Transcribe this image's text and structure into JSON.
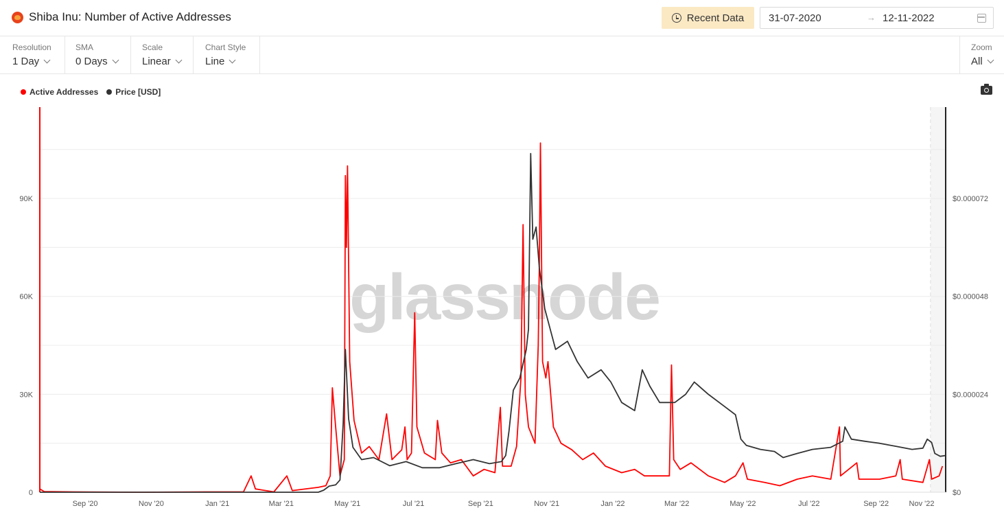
{
  "header": {
    "title": "Shiba Inu: Number of Active Addresses",
    "recent_label": "Recent Data",
    "date_start": "31-07-2020",
    "date_arrow": "→",
    "date_end": "12-11-2022"
  },
  "controls": [
    {
      "label": "Resolution",
      "value": "1 Day"
    },
    {
      "label": "SMA",
      "value": "0 Days"
    },
    {
      "label": "Scale",
      "value": "Linear"
    },
    {
      "label": "Chart Style",
      "value": "Line"
    }
  ],
  "zoom": {
    "label": "Zoom",
    "value": "All"
  },
  "watermark": "glassnode",
  "colors": {
    "active": "#ff0000",
    "price": "#333333",
    "accent": "#fbe9c4"
  },
  "chart_data": {
    "type": "line",
    "legend_position": "top-left",
    "grid": true,
    "x_ticks": [
      "Sep '20",
      "Nov '20",
      "Jan '21",
      "Mar '21",
      "May '21",
      "Jul '21",
      "Sep '21",
      "Nov '21",
      "Jan '22",
      "Mar '22",
      "May '22",
      "Jul '22",
      "Sep '22",
      "Nov '22"
    ],
    "x_range": [
      "2020-08-01",
      "2022-11-15"
    ],
    "y_left": {
      "ticks": [
        "0",
        "30K",
        "60K",
        "90K"
      ],
      "tick_values": [
        0,
        30000,
        60000,
        90000
      ],
      "range": [
        0,
        118000
      ]
    },
    "y_right": {
      "ticks": [
        "$0",
        "$0.000024",
        "$0.000048",
        "$0.000072"
      ],
      "tick_values": [
        0,
        2.4e-05,
        4.8e-05,
        7.2e-05
      ],
      "range": [
        0,
        9.44e-05
      ]
    },
    "series": [
      {
        "name": "Active Addresses",
        "axis": "left",
        "color": "#ff0000",
        "points": [
          [
            "2020-08-01",
            1000
          ],
          [
            "2020-08-05",
            200
          ],
          [
            "2020-09-01",
            100
          ],
          [
            "2020-11-01",
            0
          ],
          [
            "2021-01-01",
            100
          ],
          [
            "2021-02-05",
            100
          ],
          [
            "2021-02-12",
            5000
          ],
          [
            "2021-02-16",
            1000
          ],
          [
            "2021-03-05",
            100
          ],
          [
            "2021-03-17",
            5000
          ],
          [
            "2021-03-22",
            500
          ],
          [
            "2021-04-15",
            1500
          ],
          [
            "2021-04-22",
            2000
          ],
          [
            "2021-04-26",
            5000
          ],
          [
            "2021-04-28",
            32000
          ],
          [
            "2021-05-01",
            20000
          ],
          [
            "2021-05-05",
            5000
          ],
          [
            "2021-05-09",
            10000
          ],
          [
            "2021-05-10",
            97000
          ],
          [
            "2021-05-11",
            75000
          ],
          [
            "2021-05-12",
            100000
          ],
          [
            "2021-05-14",
            40000
          ],
          [
            "2021-05-18",
            22000
          ],
          [
            "2021-05-25",
            12000
          ],
          [
            "2021-06-01",
            14000
          ],
          [
            "2021-06-10",
            10000
          ],
          [
            "2021-06-17",
            24000
          ],
          [
            "2021-06-22",
            10000
          ],
          [
            "2021-07-01",
            13000
          ],
          [
            "2021-07-04",
            20000
          ],
          [
            "2021-07-06",
            10000
          ],
          [
            "2021-07-10",
            12000
          ],
          [
            "2021-07-13",
            55000
          ],
          [
            "2021-07-15",
            20000
          ],
          [
            "2021-07-22",
            12000
          ],
          [
            "2021-08-01",
            10000
          ],
          [
            "2021-08-03",
            22000
          ],
          [
            "2021-08-07",
            12000
          ],
          [
            "2021-08-15",
            9000
          ],
          [
            "2021-08-25",
            10000
          ],
          [
            "2021-09-05",
            5000
          ],
          [
            "2021-09-15",
            7000
          ],
          [
            "2021-09-25",
            6000
          ],
          [
            "2021-09-30",
            26000
          ],
          [
            "2021-10-02",
            8000
          ],
          [
            "2021-10-10",
            8000
          ],
          [
            "2021-10-15",
            14000
          ],
          [
            "2021-10-19",
            35000
          ],
          [
            "2021-10-21",
            82000
          ],
          [
            "2021-10-23",
            30000
          ],
          [
            "2021-10-26",
            20000
          ],
          [
            "2021-11-01",
            15000
          ],
          [
            "2021-11-04",
            45000
          ],
          [
            "2021-11-05",
            70000
          ],
          [
            "2021-11-06",
            107000
          ],
          [
            "2021-11-08",
            40000
          ],
          [
            "2021-11-11",
            35000
          ],
          [
            "2021-11-13",
            40000
          ],
          [
            "2021-11-18",
            20000
          ],
          [
            "2021-11-25",
            15000
          ],
          [
            "2021-12-05",
            13000
          ],
          [
            "2021-12-15",
            10000
          ],
          [
            "2021-12-25",
            12000
          ],
          [
            "2022-01-05",
            8000
          ],
          [
            "2022-01-20",
            6000
          ],
          [
            "2022-02-01",
            7000
          ],
          [
            "2022-02-10",
            5000
          ],
          [
            "2022-02-25",
            5000
          ],
          [
            "2022-03-05",
            5000
          ],
          [
            "2022-03-07",
            39000
          ],
          [
            "2022-03-09",
            10000
          ],
          [
            "2022-03-15",
            7000
          ],
          [
            "2022-03-25",
            9000
          ],
          [
            "2022-04-10",
            5000
          ],
          [
            "2022-04-25",
            3000
          ],
          [
            "2022-05-05",
            5000
          ],
          [
            "2022-05-12",
            9000
          ],
          [
            "2022-05-16",
            4000
          ],
          [
            "2022-06-01",
            3000
          ],
          [
            "2022-06-15",
            2000
          ],
          [
            "2022-07-01",
            4000
          ],
          [
            "2022-07-15",
            5000
          ],
          [
            "2022-08-01",
            4000
          ],
          [
            "2022-08-09",
            20000
          ],
          [
            "2022-08-10",
            5000
          ],
          [
            "2022-08-25",
            9000
          ],
          [
            "2022-08-27",
            4000
          ],
          [
            "2022-09-15",
            4000
          ],
          [
            "2022-09-30",
            5000
          ],
          [
            "2022-10-04",
            10000
          ],
          [
            "2022-10-06",
            4000
          ],
          [
            "2022-10-25",
            3000
          ],
          [
            "2022-10-31",
            10000
          ],
          [
            "2022-11-02",
            4000
          ],
          [
            "2022-11-09",
            5000
          ],
          [
            "2022-11-12",
            8000
          ]
        ]
      },
      {
        "name": "Price [USD]",
        "axis": "right",
        "color": "#333333",
        "points": [
          [
            "2020-08-01",
            0
          ],
          [
            "2021-04-15",
            0
          ],
          [
            "2021-04-20",
            5e-07
          ],
          [
            "2021-04-25",
            1.5e-06
          ],
          [
            "2021-05-01",
            1.8e-06
          ],
          [
            "2021-05-05",
            3e-06
          ],
          [
            "2021-05-08",
            1.7e-05
          ],
          [
            "2021-05-10",
            3.5e-05
          ],
          [
            "2021-05-13",
            1.8e-05
          ],
          [
            "2021-05-17",
            1.1e-05
          ],
          [
            "2021-05-25",
            8e-06
          ],
          [
            "2021-06-05",
            8.5e-06
          ],
          [
            "2021-06-20",
            6.5e-06
          ],
          [
            "2021-07-05",
            7.5e-06
          ],
          [
            "2021-07-20",
            6e-06
          ],
          [
            "2021-08-05",
            6e-06
          ],
          [
            "2021-08-20",
            7e-06
          ],
          [
            "2021-09-05",
            8e-06
          ],
          [
            "2021-09-20",
            7e-06
          ],
          [
            "2021-10-01",
            7.5e-06
          ],
          [
            "2021-10-05",
            9e-06
          ],
          [
            "2021-10-08",
            1.5e-05
          ],
          [
            "2021-10-12",
            2.5e-05
          ],
          [
            "2021-10-18",
            2.8e-05
          ],
          [
            "2021-10-24",
            3.5e-05
          ],
          [
            "2021-10-26",
            4e-05
          ],
          [
            "2021-10-28",
            8.3e-05
          ],
          [
            "2021-10-30",
            6.2e-05
          ],
          [
            "2021-11-02",
            6.5e-05
          ],
          [
            "2021-11-05",
            5.5e-05
          ],
          [
            "2021-11-10",
            4.5e-05
          ],
          [
            "2021-11-15",
            4e-05
          ],
          [
            "2021-11-20",
            3.5e-05
          ],
          [
            "2021-12-01",
            3.7e-05
          ],
          [
            "2021-12-10",
            3.2e-05
          ],
          [
            "2021-12-20",
            2.8e-05
          ],
          [
            "2022-01-01",
            3e-05
          ],
          [
            "2022-01-10",
            2.7e-05
          ],
          [
            "2022-01-20",
            2.2e-05
          ],
          [
            "2022-02-01",
            2e-05
          ],
          [
            "2022-02-08",
            3e-05
          ],
          [
            "2022-02-15",
            2.6e-05
          ],
          [
            "2022-02-24",
            2.2e-05
          ],
          [
            "2022-03-10",
            2.2e-05
          ],
          [
            "2022-03-20",
            2.4e-05
          ],
          [
            "2022-03-28",
            2.7e-05
          ],
          [
            "2022-04-10",
            2.4e-05
          ],
          [
            "2022-04-25",
            2.1e-05
          ],
          [
            "2022-05-05",
            1.9e-05
          ],
          [
            "2022-05-10",
            1.3e-05
          ],
          [
            "2022-05-15",
            1.15e-05
          ],
          [
            "2022-05-28",
            1.05e-05
          ],
          [
            "2022-06-10",
            1e-05
          ],
          [
            "2022-06-18",
            8.5e-06
          ],
          [
            "2022-07-01",
            9.5e-06
          ],
          [
            "2022-07-15",
            1.05e-05
          ],
          [
            "2022-08-01",
            1.1e-05
          ],
          [
            "2022-08-12",
            1.25e-05
          ],
          [
            "2022-08-14",
            1.6e-05
          ],
          [
            "2022-08-20",
            1.3e-05
          ],
          [
            "2022-09-01",
            1.25e-05
          ],
          [
            "2022-09-15",
            1.2e-05
          ],
          [
            "2022-10-01",
            1.12e-05
          ],
          [
            "2022-10-15",
            1.05e-05
          ],
          [
            "2022-10-25",
            1.08e-05
          ],
          [
            "2022-10-29",
            1.3e-05
          ],
          [
            "2022-11-02",
            1.22e-05
          ],
          [
            "2022-11-05",
            9.5e-06
          ],
          [
            "2022-11-10",
            8.8e-06
          ],
          [
            "2022-11-15",
            9e-06
          ]
        ]
      }
    ]
  }
}
